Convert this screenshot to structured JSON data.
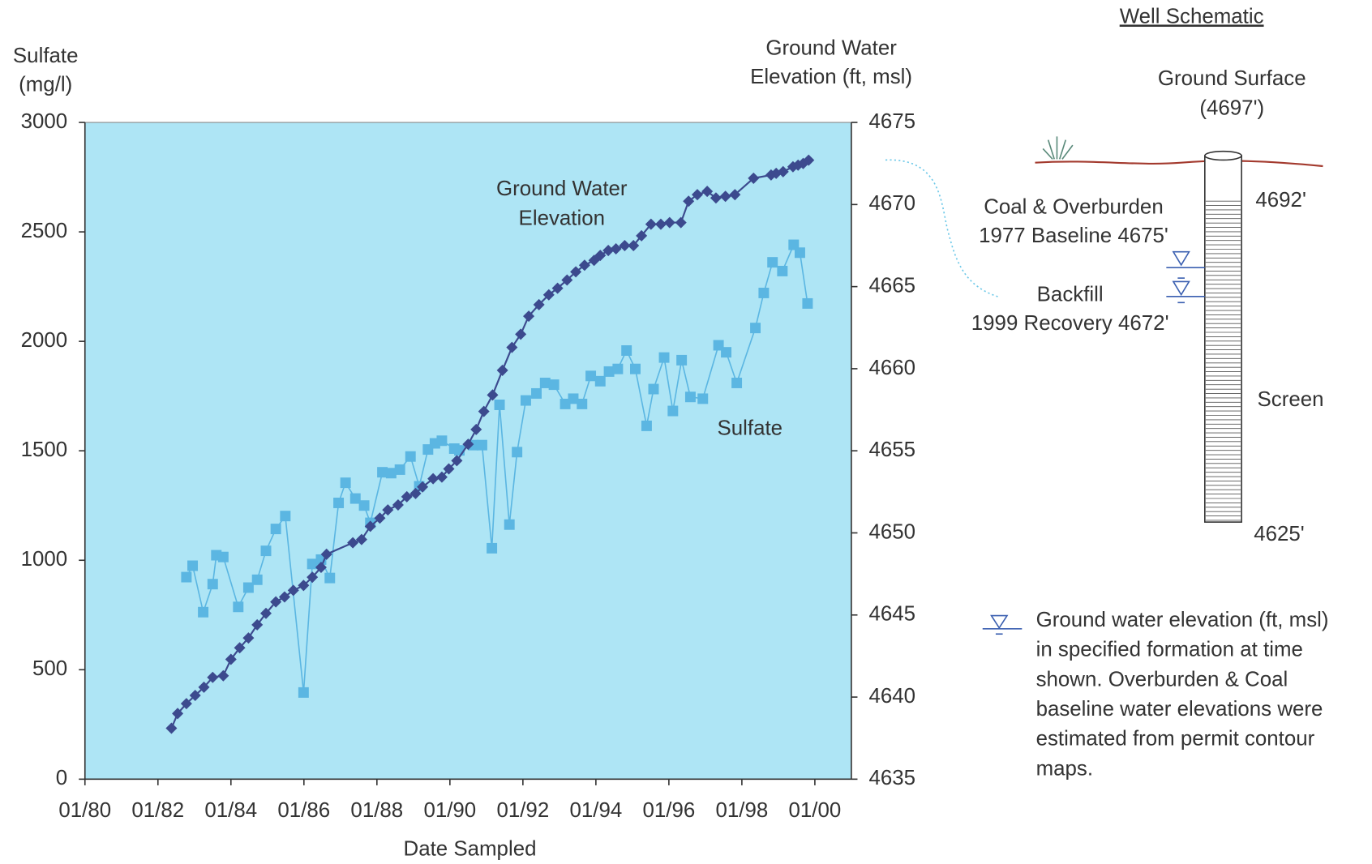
{
  "chart_data": {
    "type": "line",
    "y_label": [
      "Sulfate",
      "(mg/l)"
    ],
    "y2_label": [
      "Ground Water",
      "Elevation (ft, msl)"
    ],
    "x_label": "Date Sampled",
    "annotations": [
      [
        "Ground Water",
        "Elevation"
      ],
      [
        "Sulfate"
      ]
    ],
    "xlim": [
      1980,
      2001
    ],
    "xticks": [
      {
        "value": 1980,
        "label": "01/80"
      },
      {
        "value": 1982,
        "label": "01/82"
      },
      {
        "value": 1984,
        "label": "01/84"
      },
      {
        "value": 1986,
        "label": "01/86"
      },
      {
        "value": 1988,
        "label": "01/88"
      },
      {
        "value": 1990,
        "label": "01/90"
      },
      {
        "value": 1992,
        "label": "01/92"
      },
      {
        "value": 1994,
        "label": "01/94"
      },
      {
        "value": 1996,
        "label": "01/96"
      },
      {
        "value": 1998,
        "label": "01/98"
      },
      {
        "value": 2000,
        "label": "01/00"
      }
    ],
    "ylim": [
      0,
      3000
    ],
    "yticks": [
      0,
      500,
      1000,
      1500,
      2000,
      2500,
      3000
    ],
    "y2lim": [
      4635,
      4675
    ],
    "y2ticks": [
      4635,
      4640,
      4645,
      4650,
      4655,
      4660,
      4665,
      4670,
      4675
    ],
    "plot_background": "#aee5f5",
    "series": [
      {
        "name": "Sulfate",
        "color": "#5bb6e2",
        "marker": "square",
        "x": [
          1982.78,
          1982.95,
          1983.24,
          1983.5,
          1983.6,
          1983.79,
          1984.2,
          1984.48,
          1984.72,
          1984.96,
          1985.23,
          1985.49,
          1985.99,
          1986.23,
          1986.47,
          1986.71,
          1986.95,
          1987.14,
          1987.41,
          1987.65,
          1987.82,
          1988.15,
          1988.39,
          1988.63,
          1988.92,
          1989.16,
          1989.4,
          1989.59,
          1989.78,
          1990.12,
          1990.26,
          1990.64,
          1990.88,
          1991.15,
          1991.36,
          1991.63,
          1991.84,
          1992.08,
          1992.37,
          1992.61,
          1992.85,
          1993.16,
          1993.38,
          1993.62,
          1993.86,
          1994.12,
          1994.36,
          1994.6,
          1994.84,
          1995.08,
          1995.39,
          1995.58,
          1995.87,
          1996.11,
          1996.35,
          1996.59,
          1996.93,
          1997.36,
          1997.57,
          1997.86,
          1998.37,
          1998.6,
          1998.84,
          1999.11,
          1999.42,
          1999.59,
          1999.8
        ],
        "values": [
          923,
          975,
          763,
          891,
          1023,
          1015,
          787,
          875,
          911,
          1043,
          1143,
          1202,
          396,
          983,
          1003,
          919,
          1262,
          1354,
          1282,
          1250,
          1171,
          1402,
          1398,
          1414,
          1474,
          1338,
          1506,
          1534,
          1546,
          1510,
          1502,
          1526,
          1526,
          1055,
          1710,
          1163,
          1494,
          1730,
          1762,
          1810,
          1802,
          1714,
          1738,
          1714,
          1842,
          1818,
          1862,
          1874,
          1958,
          1874,
          1614,
          1782,
          1926,
          1682,
          1914,
          1746,
          1738,
          1982,
          1950,
          1810,
          2061,
          2221,
          2361,
          2321,
          2441,
          2405,
          2173
        ]
      },
      {
        "name": "Ground Water Elevation",
        "color": "#3c4a8e",
        "marker": "diamond",
        "axis": "y2",
        "x": [
          1982.37,
          1982.54,
          1982.78,
          1983.02,
          1983.26,
          1983.5,
          1983.79,
          1984.0,
          1984.24,
          1984.48,
          1984.72,
          1984.96,
          1985.23,
          1985.47,
          1985.71,
          1985.99,
          1986.23,
          1986.47,
          1986.62,
          1987.34,
          1987.58,
          1987.82,
          1988.08,
          1988.3,
          1988.58,
          1988.82,
          1989.06,
          1989.25,
          1989.54,
          1989.78,
          1989.97,
          1990.19,
          1990.5,
          1990.72,
          1990.93,
          1991.17,
          1991.44,
          1991.7,
          1991.94,
          1992.16,
          1992.44,
          1992.71,
          1992.95,
          1993.21,
          1993.45,
          1993.69,
          1993.95,
          1994.12,
          1994.34,
          1994.55,
          1994.79,
          1995.03,
          1995.25,
          1995.51,
          1995.78,
          1996.02,
          1996.33,
          1996.54,
          1996.78,
          1997.05,
          1997.29,
          1997.55,
          1997.81,
          1998.32,
          1998.8,
          1998.94,
          1999.13,
          1999.4,
          1999.54,
          1999.68,
          1999.83
        ],
        "values": [
          4638.1,
          4639.0,
          4639.6,
          4640.1,
          4640.6,
          4641.2,
          4641.3,
          4642.3,
          4643.0,
          4643.6,
          4644.4,
          4645.1,
          4645.8,
          4646.1,
          4646.5,
          4646.8,
          4647.3,
          4647.9,
          4648.7,
          4649.4,
          4649.6,
          4650.4,
          4650.9,
          4651.4,
          4651.7,
          4652.2,
          4652.4,
          4652.8,
          4653.3,
          4653.4,
          4653.9,
          4654.4,
          4655.4,
          4656.3,
          4657.4,
          4658.4,
          4659.9,
          4661.3,
          4662.1,
          4663.2,
          4663.9,
          4664.5,
          4664.9,
          4665.4,
          4665.9,
          4666.3,
          4666.6,
          4666.9,
          4667.2,
          4667.3,
          4667.5,
          4667.5,
          4668.1,
          4668.8,
          4668.8,
          4668.9,
          4668.9,
          4670.2,
          4670.6,
          4670.8,
          4670.4,
          4670.5,
          4670.6,
          4671.6,
          4671.8,
          4671.9,
          4672.0,
          4672.3,
          4672.4,
          4672.5,
          4672.7
        ]
      }
    ]
  },
  "schematic": {
    "title": "Well Schematic",
    "ground_surface": [
      "Ground Surface",
      "(4697')"
    ],
    "screen_top": "4692'",
    "screen_bottom": "4625'",
    "screen": "Screen",
    "coal": [
      "Coal & Overburden",
      "1977 Baseline 4675'"
    ],
    "backfill": [
      "Backfill",
      "1999 Recovery 4672'"
    ],
    "legend": [
      "Ground water elevation (ft, msl)",
      "in specified formation at time",
      "shown. Overburden & Coal",
      "baseline water elevations were",
      "estimated from permit contour",
      "maps."
    ]
  }
}
